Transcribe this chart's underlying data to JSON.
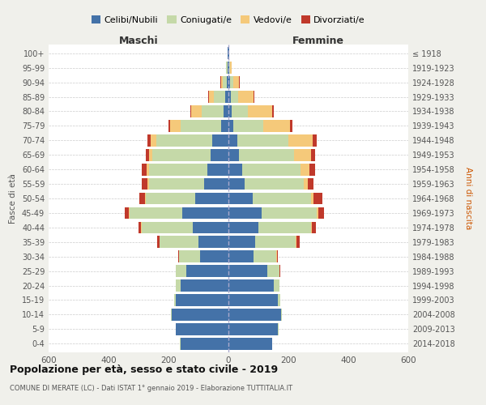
{
  "age_groups": [
    "0-4",
    "5-9",
    "10-14",
    "15-19",
    "20-24",
    "25-29",
    "30-34",
    "35-39",
    "40-44",
    "45-49",
    "50-54",
    "55-59",
    "60-64",
    "65-69",
    "70-74",
    "75-79",
    "80-84",
    "85-89",
    "90-94",
    "95-99",
    "100+"
  ],
  "birth_years": [
    "2014-2018",
    "2009-2013",
    "2004-2008",
    "1999-2003",
    "1994-1998",
    "1989-1993",
    "1984-1988",
    "1979-1983",
    "1974-1978",
    "1969-1973",
    "1964-1968",
    "1959-1963",
    "1954-1958",
    "1949-1953",
    "1944-1948",
    "1939-1943",
    "1934-1938",
    "1929-1933",
    "1924-1928",
    "1919-1923",
    "≤ 1918"
  ],
  "maschi": {
    "celibi": [
      160,
      175,
      190,
      175,
      160,
      140,
      95,
      100,
      120,
      155,
      110,
      80,
      70,
      60,
      55,
      25,
      15,
      10,
      5,
      3,
      2
    ],
    "coniugati": [
      1,
      2,
      3,
      5,
      15,
      35,
      70,
      130,
      170,
      175,
      165,
      185,
      195,
      195,
      185,
      135,
      75,
      40,
      15,
      4,
      1
    ],
    "vedovi": [
      0,
      0,
      0,
      0,
      0,
      0,
      0,
      1,
      1,
      2,
      3,
      5,
      8,
      10,
      20,
      35,
      35,
      15,
      5,
      1,
      0
    ],
    "divorziati": [
      0,
      0,
      0,
      0,
      1,
      2,
      3,
      8,
      10,
      15,
      20,
      20,
      15,
      10,
      10,
      5,
      3,
      2,
      1,
      0,
      0
    ]
  },
  "femmine": {
    "nubili": [
      145,
      165,
      175,
      165,
      150,
      130,
      85,
      90,
      100,
      110,
      80,
      55,
      45,
      35,
      30,
      15,
      10,
      8,
      5,
      3,
      2
    ],
    "coniugate": [
      1,
      2,
      3,
      8,
      20,
      40,
      75,
      135,
      175,
      185,
      195,
      195,
      195,
      185,
      170,
      100,
      55,
      25,
      10,
      3,
      1
    ],
    "vedove": [
      0,
      0,
      0,
      0,
      0,
      0,
      1,
      2,
      3,
      5,
      8,
      15,
      30,
      55,
      80,
      90,
      80,
      50,
      20,
      5,
      1
    ],
    "divorziate": [
      0,
      0,
      0,
      0,
      1,
      2,
      4,
      10,
      15,
      20,
      30,
      20,
      20,
      15,
      15,
      8,
      5,
      3,
      2,
      0,
      0
    ]
  },
  "colors": {
    "celibi": "#4472a8",
    "coniugati": "#c5d9a8",
    "vedovi": "#f5c97a",
    "divorziati": "#c0392b"
  },
  "title": "Popolazione per età, sesso e stato civile - 2019",
  "subtitle": "COMUNE DI MERATE (LC) - Dati ISTAT 1° gennaio 2019 - Elaborazione TUTTITALIA.IT",
  "xlabel_maschi": "Maschi",
  "xlabel_femmine": "Femmine",
  "ylabel_left": "Fasce di età",
  "ylabel_right": "Anni di nascita",
  "xlim": 600,
  "xticks": [
    -600,
    -400,
    -200,
    0,
    200,
    400,
    600
  ],
  "xticklabels": [
    "600",
    "400",
    "200",
    "0",
    "200",
    "400",
    "600"
  ],
  "legend_labels": [
    "Celibi/Nubili",
    "Coniugati/e",
    "Vedovi/e",
    "Divorziati/e"
  ],
  "bg_color": "#f0f0eb",
  "plot_bg": "#ffffff"
}
